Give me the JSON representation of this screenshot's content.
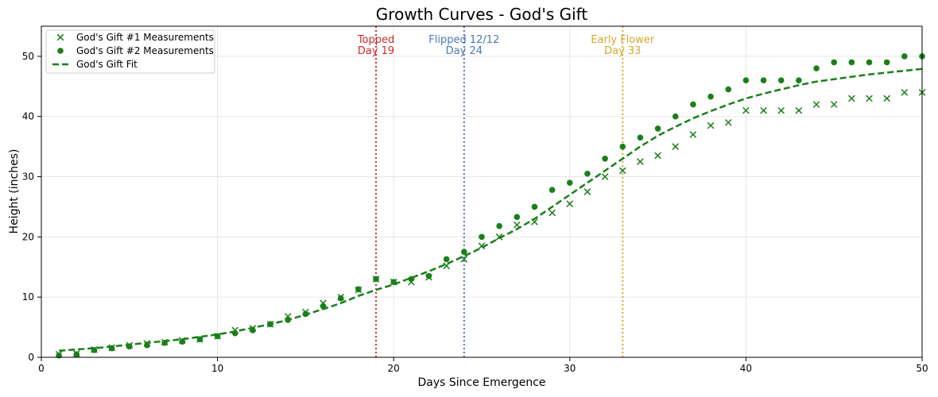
{
  "chart_data": {
    "type": "scatter",
    "title": "Growth Curves - God's Gift",
    "xlabel": "Days Since Emergence",
    "ylabel": "Height (inches)",
    "xlim": [
      0,
      50
    ],
    "ylim": [
      0,
      55
    ],
    "xticks": [
      0,
      10,
      20,
      30,
      40,
      50
    ],
    "yticks": [
      0,
      10,
      20,
      30,
      40,
      50
    ],
    "grid": true,
    "legend_position": "top-left",
    "series": [
      {
        "name": "God's Gift #1 Measurements",
        "marker": "x",
        "color": "#1a7f1a",
        "x": [
          1,
          2,
          3,
          4,
          5,
          6,
          7,
          8,
          9,
          10,
          11,
          12,
          13,
          14,
          15,
          16,
          17,
          18,
          19,
          20,
          21,
          22,
          23,
          24,
          25,
          26,
          27,
          28,
          29,
          30,
          31,
          32,
          33,
          34,
          35,
          36,
          37,
          38,
          39,
          40,
          41,
          42,
          43,
          44,
          45,
          46,
          47,
          48,
          49,
          50
        ],
        "y": [
          0.5,
          0.6,
          1.3,
          1.6,
          2.0,
          2.3,
          2.5,
          2.8,
          3.0,
          3.5,
          4.5,
          4.8,
          5.5,
          6.8,
          7.5,
          9.0,
          10.0,
          11.2,
          13.0,
          12.5,
          12.5,
          13.3,
          15.2,
          16.3,
          18.5,
          20.0,
          22.0,
          22.5,
          24.0,
          25.5,
          27.5,
          30.0,
          31.0,
          32.5,
          33.5,
          35.0,
          37.0,
          38.5,
          39.0,
          41.0,
          41.0,
          41.0,
          41.0,
          42.0,
          42.0,
          43.0,
          43.0,
          43.0,
          44.0,
          44.0
        ]
      },
      {
        "name": "God's Gift #2 Measurements",
        "marker": "circle",
        "color": "#1a7f1a",
        "x": [
          1,
          2,
          3,
          4,
          5,
          6,
          7,
          8,
          9,
          10,
          11,
          12,
          13,
          14,
          15,
          16,
          17,
          18,
          19,
          20,
          21,
          22,
          23,
          24,
          25,
          26,
          27,
          28,
          29,
          30,
          31,
          32,
          33,
          34,
          35,
          36,
          37,
          38,
          39,
          40,
          41,
          42,
          43,
          44,
          45,
          46,
          47,
          48,
          49,
          50
        ],
        "y": [
          0.3,
          0.5,
          1.2,
          1.5,
          1.8,
          2.0,
          2.4,
          2.6,
          3.0,
          3.5,
          4.0,
          4.5,
          5.5,
          6.2,
          7.2,
          8.5,
          9.8,
          11.3,
          13.0,
          12.5,
          13.0,
          13.5,
          16.3,
          17.5,
          20.0,
          21.8,
          23.3,
          25.0,
          27.8,
          29.0,
          30.5,
          33.0,
          35.0,
          36.5,
          38.0,
          40.0,
          42.0,
          43.3,
          44.5,
          46.0,
          46.0,
          46.0,
          46.0,
          48.0,
          49.0,
          49.0,
          49.0,
          49.0,
          50.0,
          50.0
        ]
      },
      {
        "name": "God's Gift Fit",
        "line_style": "dashed",
        "color": "#1a7f1a",
        "x": [
          1,
          2,
          3,
          4,
          5,
          6,
          7,
          8,
          9,
          10,
          11,
          12,
          13,
          14,
          15,
          16,
          17,
          18,
          19,
          20,
          21,
          22,
          23,
          24,
          25,
          26,
          27,
          28,
          29,
          30,
          31,
          32,
          33,
          34,
          35,
          36,
          37,
          38,
          39,
          40,
          41,
          42,
          43,
          44,
          45,
          46,
          47,
          48,
          49,
          50
        ],
        "y": [
          1.1,
          1.3,
          1.5,
          1.8,
          2.1,
          2.4,
          2.7,
          3.0,
          3.4,
          3.8,
          4.3,
          4.9,
          5.5,
          6.2,
          7.1,
          8.0,
          9.0,
          10.2,
          11.2,
          12.1,
          13.2,
          14.3,
          15.5,
          16.8,
          18.2,
          19.8,
          21.3,
          23.0,
          25.0,
          27.0,
          29.0,
          31.0,
          33.0,
          35.0,
          36.8,
          38.3,
          39.7,
          40.9,
          42.0,
          43.0,
          43.8,
          44.5,
          45.2,
          45.8,
          46.2,
          46.6,
          47.0,
          47.3,
          47.6,
          47.9
        ]
      }
    ],
    "annotations": [
      {
        "x": 19,
        "color": "#cc2a2a",
        "line1": "Topped",
        "line2": "Day 19"
      },
      {
        "x": 24,
        "color": "#4b79b5",
        "line1": "Flipped 12/12",
        "line2": "Day 24"
      },
      {
        "x": 33,
        "color": "#d4a72c",
        "line1": "Early Flower",
        "line2": "Day 33"
      }
    ]
  }
}
